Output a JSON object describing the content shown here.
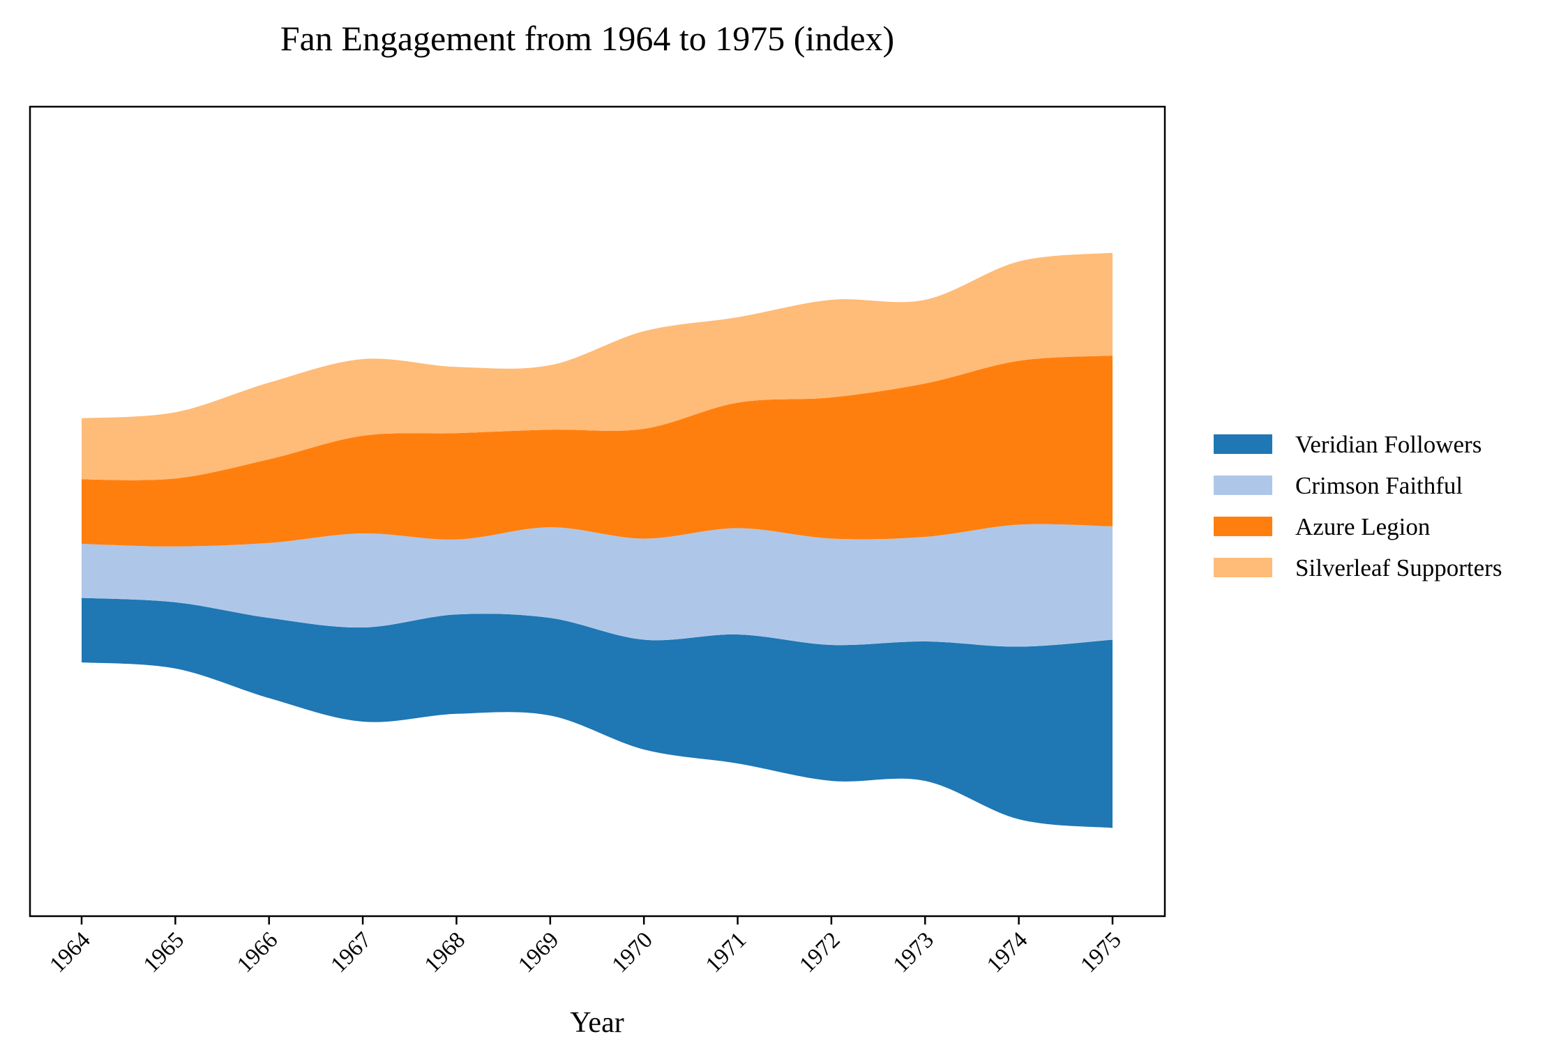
{
  "chart_data": {
    "type": "area",
    "subtype": "streamgraph",
    "title": "Fan Engagement from 1964 to 1975 (index)",
    "xlabel": "Year",
    "ylabel": "",
    "x": [
      "1964",
      "1965",
      "1966",
      "1967",
      "1968",
      "1969",
      "1970",
      "1971",
      "1972",
      "1973",
      "1974",
      "1975"
    ],
    "series": [
      {
        "name": "Veridian Followers",
        "color": "#1f77b4",
        "values": [
          37,
          38,
          46,
          54,
          57,
          56,
          63,
          74,
          78,
          80,
          99,
          108
        ]
      },
      {
        "name": "Crimson Faithful",
        "color": "#aec7e8",
        "values": [
          31,
          32,
          43,
          54,
          43,
          52,
          58,
          61,
          61,
          60,
          70,
          65
        ]
      },
      {
        "name": "Azure Legion",
        "color": "#ff7f0e",
        "values": [
          37,
          39,
          48,
          56,
          61,
          56,
          63,
          72,
          81,
          88,
          94,
          98
        ]
      },
      {
        "name": "Silverleaf Supporters",
        "color": "#ffbb78",
        "values": [
          35,
          38,
          44,
          44,
          38,
          37,
          56,
          49,
          56,
          48,
          57,
          59
        ]
      }
    ],
    "legend": "right",
    "grid": false,
    "y_ticks_visible": false
  }
}
